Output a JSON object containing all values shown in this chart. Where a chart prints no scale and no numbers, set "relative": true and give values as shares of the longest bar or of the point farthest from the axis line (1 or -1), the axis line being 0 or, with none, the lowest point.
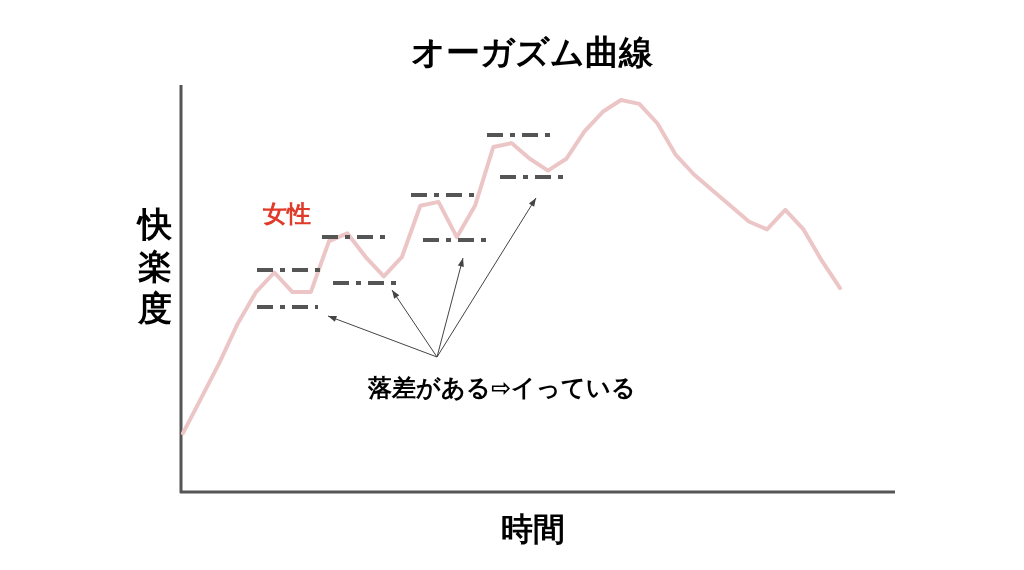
{
  "chart_data": {
    "type": "line",
    "title": "オーガズム曲線",
    "xlabel": "時間",
    "ylabel": "快楽度",
    "relative": true,
    "categories": [
      null,
      null,
      null,
      null,
      null,
      null,
      null,
      null,
      null,
      null,
      null,
      null,
      null,
      null,
      null,
      null,
      null,
      null,
      null,
      null,
      null,
      null,
      null,
      null,
      null,
      null,
      null,
      null,
      null,
      null,
      null,
      null,
      null,
      null,
      null,
      null,
      null
    ],
    "series": [
      {
        "name": "女性",
        "color": "#ecc6c6",
        "values": [
          0.15,
          0.24,
          0.33,
          0.43,
          0.51,
          0.56,
          0.51,
          0.51,
          0.64,
          0.66,
          0.6,
          0.55,
          0.6,
          0.73,
          0.74,
          0.65,
          0.73,
          0.88,
          0.89,
          0.85,
          0.82,
          0.85,
          0.92,
          0.97,
          1,
          0.99,
          0.94,
          0.86,
          0.81,
          0.77,
          0.73,
          0.69,
          0.67,
          0.72,
          0.67,
          0.59,
          0.52
        ]
      }
    ],
    "annotations": [
      "落差がある⇨イっている"
    ],
    "marker": "none",
    "line_style": "solid"
  }
}
